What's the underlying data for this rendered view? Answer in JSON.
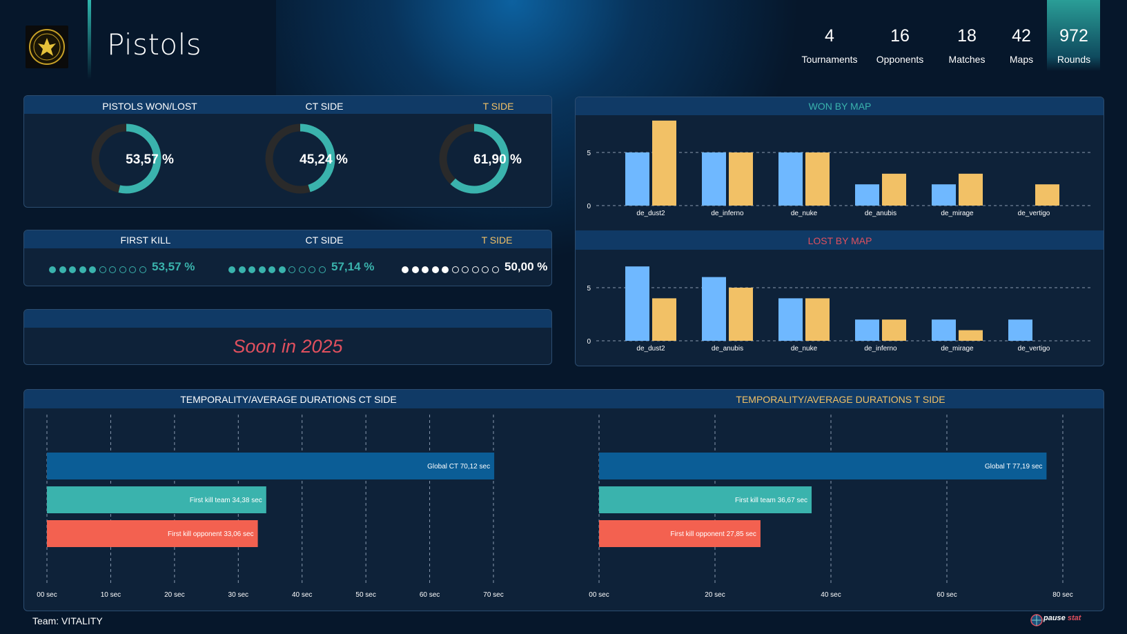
{
  "header": {
    "title": "Pistols",
    "stats": [
      {
        "value": "4",
        "label": "Tournaments"
      },
      {
        "value": "16",
        "label": "Opponents"
      },
      {
        "value": "18",
        "label": "Matches"
      },
      {
        "value": "42",
        "label": "Maps"
      },
      {
        "value": "972",
        "label": "Rounds"
      }
    ],
    "logo_icon": "vitality-team-logo"
  },
  "pistols_panel": {
    "won_lost": {
      "label": "PISTOLS WON/LOST",
      "value_text": "53,57 %",
      "fraction": 0.5357
    },
    "ct_side": {
      "label": "CT SIDE",
      "value_text": "45,24 %",
      "fraction": 0.4524
    },
    "t_side": {
      "label": "T SIDE",
      "value_text": "61,90 %",
      "fraction": 0.619
    }
  },
  "first_kill_panel": {
    "first_kill": {
      "label": "FIRST KILL",
      "value_text": "53,57 %",
      "filled": 5,
      "total": 10
    },
    "ct_side": {
      "label": "CT SIDE",
      "value_text": "57,14 %",
      "filled": 6,
      "total": 10
    },
    "t_side": {
      "label": "T SIDE",
      "value_text": "50,00 %",
      "filled": 5,
      "total": 10
    }
  },
  "soon_panel": {
    "text": "Soon in 2025"
  },
  "colors": {
    "teal": "#3ab3ad",
    "gold": "#f2c166",
    "blue_bar": "#6fb8ff",
    "red": "#f36150",
    "dark_blue": "#0b5d96",
    "white": "#ffffff",
    "lost_title": "#e0505e"
  },
  "footer": {
    "team": "Team: VITALITY",
    "brand_a": "pause",
    "brand_b": "stat"
  },
  "chart_data": [
    {
      "type": "bar",
      "title": "WON BY MAP",
      "categories": [
        "de_dust2",
        "de_inferno",
        "de_nuke",
        "de_anubis",
        "de_mirage",
        "de_vertigo"
      ],
      "series": [
        {
          "values": [
            5,
            5,
            5,
            2,
            2,
            0
          ]
        },
        {
          "values": [
            8,
            5,
            5,
            3,
            3,
            2
          ]
        }
      ],
      "ylim": [
        0,
        8
      ],
      "yticks": [
        0,
        5
      ],
      "grid": true
    },
    {
      "type": "bar",
      "title": "LOST BY MAP",
      "categories": [
        "de_dust2",
        "de_anubis",
        "de_nuke",
        "de_inferno",
        "de_mirage",
        "de_vertigo"
      ],
      "series": [
        {
          "values": [
            7,
            6,
            4,
            2,
            2,
            2
          ]
        },
        {
          "values": [
            4,
            5,
            4,
            2,
            1,
            0
          ]
        }
      ],
      "ylim": [
        0,
        7
      ],
      "yticks": [
        0,
        5
      ],
      "grid": true
    },
    {
      "type": "bar",
      "orientation": "horizontal",
      "title": "TEMPORALITY/AVERAGE DURATIONS CT SIDE",
      "bars": [
        {
          "label": "Global CT 70,12 sec",
          "value": 70.12
        },
        {
          "label": "First kill team 34,38 sec",
          "value": 34.38
        },
        {
          "label": "First kill opponent 33,06 sec",
          "value": 33.06
        }
      ],
      "xticks": [
        0,
        10,
        20,
        30,
        40,
        50,
        60,
        70
      ],
      "xtick_labels": [
        "00 sec",
        "10 sec",
        "20 sec",
        "30 sec",
        "40 sec",
        "50 sec",
        "60 sec",
        "70 sec"
      ],
      "xlim": [
        0,
        70
      ],
      "grid": true
    },
    {
      "type": "bar",
      "orientation": "horizontal",
      "title": "TEMPORALITY/AVERAGE DURATIONS T SIDE",
      "bars": [
        {
          "label": "Global T  77,19 sec",
          "value": 77.19
        },
        {
          "label": "First kill team  36,67 sec",
          "value": 36.67
        },
        {
          "label": "First kill opponent  27,85 sec",
          "value": 27.85
        }
      ],
      "xticks": [
        0,
        20,
        40,
        60,
        80
      ],
      "xtick_labels": [
        "00 sec",
        "20 sec",
        "40 sec",
        "60 sec",
        "80 sec"
      ],
      "xlim": [
        0,
        80
      ],
      "grid": true
    }
  ]
}
